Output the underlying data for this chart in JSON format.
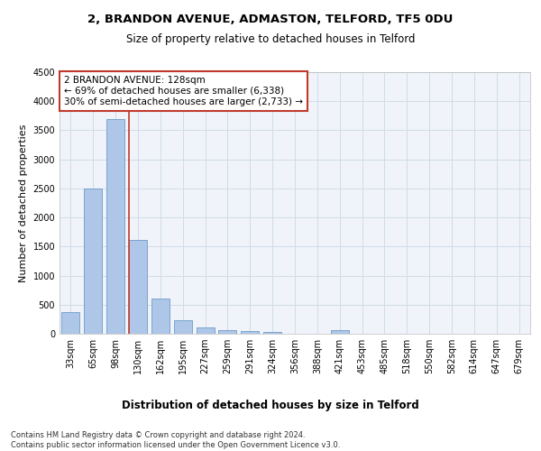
{
  "title": "2, BRANDON AVENUE, ADMASTON, TELFORD, TF5 0DU",
  "subtitle": "Size of property relative to detached houses in Telford",
  "xlabel": "Distribution of detached houses by size in Telford",
  "ylabel": "Number of detached properties",
  "categories": [
    "33sqm",
    "65sqm",
    "98sqm",
    "130sqm",
    "162sqm",
    "195sqm",
    "227sqm",
    "259sqm",
    "291sqm",
    "324sqm",
    "356sqm",
    "388sqm",
    "421sqm",
    "453sqm",
    "485sqm",
    "518sqm",
    "550sqm",
    "582sqm",
    "614sqm",
    "647sqm",
    "679sqm"
  ],
  "values": [
    380,
    2500,
    3700,
    1620,
    600,
    240,
    115,
    65,
    40,
    30,
    0,
    0,
    60,
    0,
    0,
    0,
    0,
    0,
    0,
    0,
    0
  ],
  "bar_color": "#aec6e8",
  "bar_edge_color": "#5a8fc2",
  "vline_x_index": 2.6,
  "vline_color": "#c0392b",
  "annotation_line1": "2 BRANDON AVENUE: 128sqm",
  "annotation_line2": "← 69% of detached houses are smaller (6,338)",
  "annotation_line3": "30% of semi-detached houses are larger (2,733) →",
  "annotation_box_color": "#ffffff",
  "annotation_box_edge_color": "#c0392b",
  "ylim": [
    0,
    4500
  ],
  "yticks": [
    0,
    500,
    1000,
    1500,
    2000,
    2500,
    3000,
    3500,
    4000,
    4500
  ],
  "grid_color": "#d0dce8",
  "footer_text": "Contains HM Land Registry data © Crown copyright and database right 2024.\nContains public sector information licensed under the Open Government Licence v3.0.",
  "title_fontsize": 9.5,
  "subtitle_fontsize": 8.5,
  "xlabel_fontsize": 8.5,
  "ylabel_fontsize": 8,
  "tick_fontsize": 7,
  "annotation_fontsize": 7.5,
  "footer_fontsize": 6
}
